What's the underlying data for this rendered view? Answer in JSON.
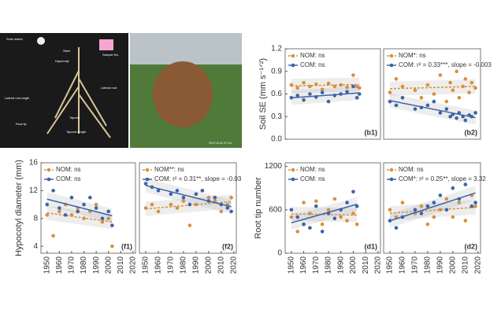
{
  "photo_labels": [
    "Soils maker",
    "Sample No.",
    "Stem",
    "Hypocotyl",
    "Lateral root angle",
    "Lateral root",
    "Root tip",
    "Taproot",
    "Taproot length"
  ],
  "photo_timestamp": "2017-8-11 07:41",
  "chart_data": [
    {
      "type": "scatter",
      "panel": "(b1)",
      "y_label": "Soil SE (mm s⁻¹ᐟ²)",
      "xlim": [
        1945,
        2022
      ],
      "ylim": [
        0,
        1.2
      ],
      "yticks": [
        {
          "value": 0,
          "label": "0.0"
        },
        0.3,
        0.6,
        0.9,
        1.2
      ],
      "x": [
        1950,
        1955,
        1960,
        1965,
        1970,
        1975,
        1980,
        1985,
        1990,
        1995,
        2000,
        2003,
        2005
      ],
      "series": [
        {
          "name": "NOM: ns",
          "color": "#d9903a",
          "values": [
            0.72,
            0.68,
            0.75,
            0.7,
            0.73,
            0.66,
            0.74,
            0.7,
            0.72,
            0.69,
            0.85,
            0.7,
            0.68
          ]
        },
        {
          "name": "COM: ns",
          "color": "#3c63a8",
          "values": [
            0.55,
            0.58,
            0.52,
            0.6,
            0.56,
            0.62,
            0.5,
            0.58,
            0.6,
            0.63,
            0.7,
            0.55,
            0.6
          ]
        }
      ]
    },
    {
      "type": "scatter",
      "panel": "(b2)",
      "xlim": [
        1945,
        2022
      ],
      "ylim": [
        0,
        1.2
      ],
      "x": [
        1950,
        1955,
        1960,
        1970,
        1975,
        1980,
        1985,
        1990,
        1995,
        1998,
        2000,
        2003,
        2005,
        2008,
        2010,
        2013,
        2015,
        2018
      ],
      "series": [
        {
          "name": "NOM*: ns",
          "color": "#d9903a",
          "values": [
            0.62,
            0.8,
            0.7,
            0.65,
            0.55,
            0.72,
            0.6,
            0.85,
            0.5,
            0.75,
            0.65,
            0.9,
            0.55,
            0.7,
            0.8,
            0.62,
            0.75,
            0.68
          ]
        },
        {
          "name": "COM: r² = 0.33***, slope = -0.003",
          "color": "#3c63a8",
          "values": [
            0.5,
            0.45,
            0.55,
            0.4,
            0.42,
            0.45,
            0.5,
            0.35,
            0.4,
            0.3,
            0.33,
            0.28,
            0.35,
            0.3,
            0.25,
            0.32,
            0.3,
            0.35
          ]
        }
      ]
    },
    {
      "type": "scatter",
      "panel": "(f1)",
      "y_label": "Hypocotyl diameter (mm)",
      "xlim": [
        1945,
        2022
      ],
      "ylim": [
        3,
        16
      ],
      "xticks": [
        1950,
        1960,
        1970,
        1980,
        1990,
        2000,
        2010,
        2020
      ],
      "yticks": [
        4,
        8,
        12,
        16
      ],
      "x": [
        1950,
        1955,
        1960,
        1965,
        1970,
        1975,
        1980,
        1985,
        1990,
        1995,
        2000,
        2003
      ],
      "series": [
        {
          "name": "NOM: ns",
          "color": "#d9903a",
          "values": [
            8.5,
            5.5,
            9,
            10,
            8.5,
            9.5,
            8,
            9,
            10,
            7.5,
            8,
            4
          ]
        },
        {
          "name": "COM: ns",
          "color": "#3c63a8",
          "values": [
            10,
            12,
            9.5,
            8.5,
            11,
            9,
            10,
            11,
            9.5,
            8,
            9,
            7
          ]
        }
      ]
    },
    {
      "type": "scatter",
      "panel": "(f2)",
      "xlim": [
        1945,
        2022
      ],
      "ylim": [
        3,
        16
      ],
      "xticks": [
        1950,
        1960,
        1970,
        1980,
        1990,
        2000,
        2010,
        2020
      ],
      "x": [
        1950,
        1955,
        1960,
        1970,
        1975,
        1980,
        1985,
        1990,
        1995,
        2000,
        2005,
        2010,
        2015,
        2018
      ],
      "series": [
        {
          "name": "NOM**: ns",
          "color": "#d9903a",
          "values": [
            9.5,
            10,
            9,
            10,
            9.5,
            10.5,
            7,
            10,
            12,
            11,
            10.5,
            9,
            10,
            11
          ]
        },
        {
          "name": "COM: r² = 0.31**, slope = -0.03",
          "color": "#3c63a8",
          "values": [
            13,
            12.5,
            12,
            11.5,
            12,
            11,
            10,
            11.5,
            12,
            10.5,
            11,
            10,
            9.5,
            9
          ]
        }
      ]
    },
    {
      "type": "scatter",
      "panel": "(d1)",
      "y_label": "Root tip number",
      "xlim": [
        1945,
        2022
      ],
      "ylim": [
        0,
        1250
      ],
      "xticks": [
        1950,
        1960,
        1970,
        1980,
        1990,
        2000,
        2010,
        2020
      ],
      "yticks": [
        0,
        600,
        1200
      ],
      "x": [
        1950,
        1955,
        1960,
        1965,
        1970,
        1975,
        1980,
        1985,
        1990,
        1995,
        2000,
        2003
      ],
      "series": [
        {
          "name": "NOM: ns",
          "color": "#d9903a",
          "values": [
            500,
            300,
            700,
            550,
            720,
            400,
            600,
            750,
            500,
            450,
            550,
            400
          ]
        },
        {
          "name": "COM: ns",
          "color": "#3c63a8",
          "values": [
            600,
            500,
            400,
            350,
            650,
            300,
            550,
            480,
            600,
            700,
            850,
            650
          ]
        }
      ]
    },
    {
      "type": "scatter",
      "panel": "(d2)",
      "xlim": [
        1945,
        2022
      ],
      "ylim": [
        0,
        1250
      ],
      "xticks": [
        1950,
        1960,
        1970,
        1980,
        1990,
        2000,
        2010,
        2020
      ],
      "x": [
        1950,
        1955,
        1960,
        1970,
        1975,
        1980,
        1985,
        1990,
        1995,
        2000,
        2005,
        2010,
        2015,
        2018
      ],
      "series": [
        {
          "name": "NOM: ns",
          "color": "#d9903a",
          "values": [
            600,
            500,
            700,
            550,
            650,
            400,
            500,
            600,
            750,
            500,
            700,
            450,
            800,
            650
          ]
        },
        {
          "name": "COM*: r² = 0.25**, slope = 3.32",
          "color": "#3c63a8",
          "values": [
            450,
            350,
            500,
            600,
            550,
            650,
            700,
            800,
            600,
            900,
            750,
            950,
            650,
            700
          ]
        }
      ]
    }
  ]
}
